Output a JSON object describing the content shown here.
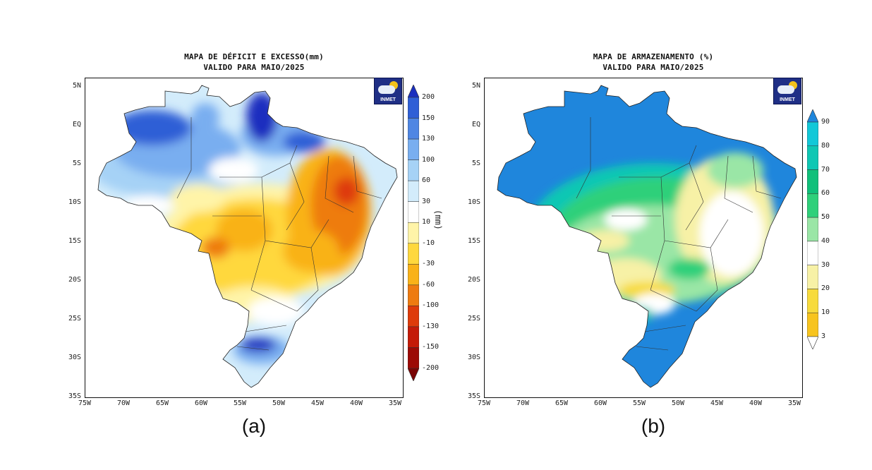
{
  "panels": [
    {
      "title_line1": "MAPA DE DÉFICIT E EXCESSO(mm)",
      "title_line2": "VALIDO PARA MAIO/2025",
      "caption": "(a)",
      "logo_text": "INMET",
      "unit_label": "(mm)",
      "colorbar_ticks": [
        "200",
        "150",
        "130",
        "100",
        "60",
        "30",
        "10",
        "-10",
        "-30",
        "-60",
        "-100",
        "-130",
        "-150",
        "-200"
      ],
      "colorbar_colors": [
        "#1a2fbf",
        "#2f5fd6",
        "#4f86e3",
        "#79aef0",
        "#a6d2f6",
        "#d3ecfb",
        "#ffffff",
        "#fff4a8",
        "#ffd83d",
        "#f9b218",
        "#ee7b10",
        "#de3b0a",
        "#c41a08",
        "#9c0a06",
        "#7a0505"
      ]
    },
    {
      "title_line1": "MAPA DE ARMAZENAMENTO (%)",
      "title_line2": "VALIDO PARA MAIO/2025",
      "caption": "(b)",
      "logo_text": "INMET",
      "colorbar_ticks": [
        "90",
        "80",
        "70",
        "60",
        "50",
        "40",
        "30",
        "20",
        "10",
        "3"
      ],
      "colorbar_colors": [
        "#1f86dc",
        "#12c8d8",
        "#0fc7b4",
        "#10c07a",
        "#2fd07a",
        "#9ae6a6",
        "#ffffff",
        "#f7f1a6",
        "#f7db3c",
        "#f7c41e",
        "#ffffff"
      ]
    }
  ],
  "lat_labels": [
    "5N",
    "EQ",
    "5S",
    "10S",
    "15S",
    "20S",
    "25S",
    "30S",
    "35S"
  ],
  "lon_labels": [
    "75W",
    "70W",
    "65W",
    "60W",
    "55W",
    "50W",
    "45W",
    "40W",
    "35W"
  ],
  "map_colors": {
    "a_base": "#d3ecfb",
    "a_blue_light": "#a6d2f6",
    "a_blue_mid": "#79aef0",
    "a_blue_dark": "#2f5fd6",
    "a_blue_deep": "#1a2fbf",
    "a_yellow_light": "#fff4a8",
    "a_yellow": "#ffd83d",
    "a_orange": "#f9b218",
    "a_orange_dark": "#ee7b10",
    "a_red": "#de3b0a",
    "b_base": "#1f86dc",
    "b_teal": "#0fc7b4",
    "b_green": "#2fd07a",
    "b_lightgreen": "#9ae6a6",
    "b_yellow": "#f7f1a6",
    "b_yellowdark": "#f7db3c"
  }
}
